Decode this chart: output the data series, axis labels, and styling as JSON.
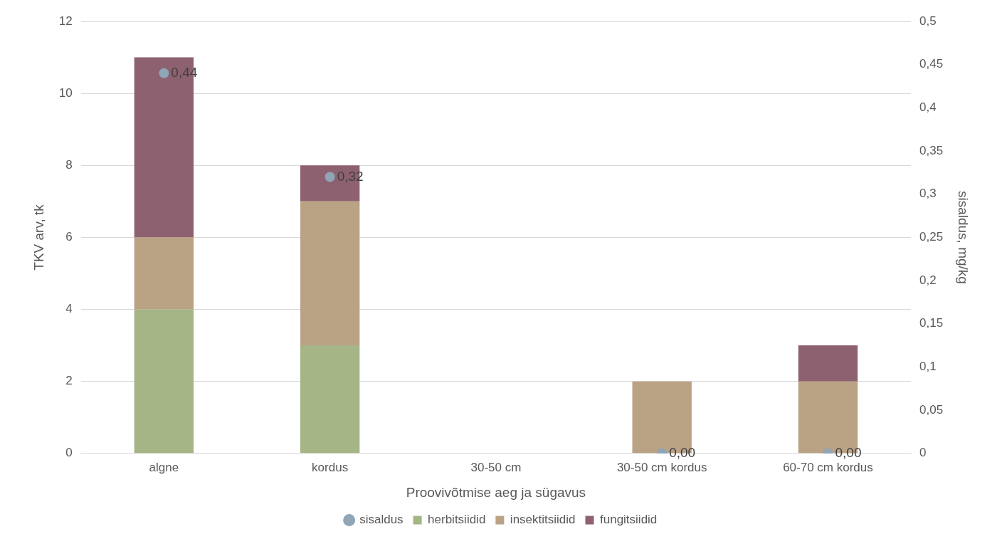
{
  "chart_data": {
    "type": "bar",
    "stacked": true,
    "xlabel": "Proovivõtmise aeg ja sügavus",
    "ylabel": "TKV arv, tk",
    "y2label": "sisaldus, mg/kg",
    "categories": [
      "algne",
      "kordus",
      "30-50 cm",
      "30-50 cm kordus",
      "60-70 cm kordus"
    ],
    "series": [
      {
        "name": "herbitsiidid",
        "color": "#a5b586",
        "values": [
          4,
          3,
          0,
          0,
          0
        ]
      },
      {
        "name": "insektitsiidid",
        "color": "#baa285",
        "values": [
          2,
          4,
          0,
          2,
          2
        ]
      },
      {
        "name": "fungitsiidid",
        "color": "#8e6170",
        "values": [
          5,
          1,
          0,
          0,
          1
        ]
      },
      {
        "name": "sisaldus",
        "type": "scatter",
        "axis": "y2",
        "marker": "circle",
        "color": "#8fa5b8",
        "values": [
          0.44,
          0.32,
          null,
          0,
          0
        ],
        "value_labels": [
          "0,44",
          "0,32",
          null,
          "0,00",
          "0,00"
        ]
      }
    ],
    "ylim": [
      0,
      12
    ],
    "yticks": [
      0,
      2,
      4,
      6,
      8,
      10,
      12
    ],
    "y2lim": [
      0,
      0.5
    ],
    "y2ticks": [
      0,
      {
        "value": 0.05,
        "label": "0,05"
      },
      {
        "value": 0.1,
        "label": "0,1"
      },
      {
        "value": 0.15,
        "label": "0,15"
      },
      {
        "value": 0.2,
        "label": "0,2"
      },
      {
        "value": 0.25,
        "label": "0,25"
      },
      {
        "value": 0.3,
        "label": "0,3"
      },
      {
        "value": 0.35,
        "label": "0,35"
      },
      {
        "value": 0.4,
        "label": "0,4"
      },
      {
        "value": 0.45,
        "label": "0,45"
      },
      {
        "value": 0.5,
        "label": "0,5"
      }
    ],
    "grid": "y",
    "legend": "bottom"
  }
}
